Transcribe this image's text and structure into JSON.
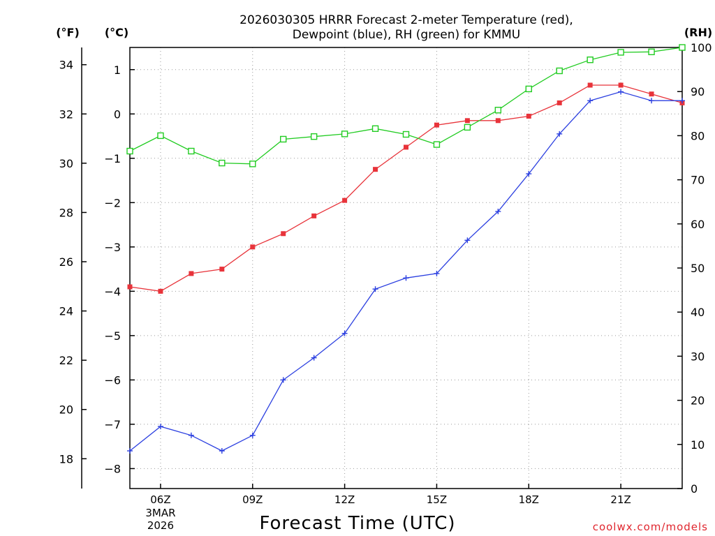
{
  "chart_data": {
    "type": "line",
    "title": [
      "2026030305 HRRR Forecast 2-meter Temperature (red),",
      "Dewpoint (blue), RH (green) for KMMU"
    ],
    "xlabel": "Forecast Time (UTC)",
    "credit": "coolwx.com/models",
    "units": {
      "fahrenheit": "(°F)",
      "celsius": "(°C)",
      "rh": "(RH)"
    },
    "x_hours": [
      5,
      6,
      7,
      8,
      9,
      10,
      11,
      12,
      13,
      14,
      15,
      16,
      17,
      18,
      19,
      20,
      21,
      22,
      23
    ],
    "xlim": [
      5,
      23
    ],
    "x_ticks": [
      {
        "hour": 6,
        "label": "06Z",
        "sub": [
          "3MAR",
          "2026"
        ]
      },
      {
        "hour": 9,
        "label": "09Z"
      },
      {
        "hour": 12,
        "label": "12Z"
      },
      {
        "hour": 15,
        "label": "15Z"
      },
      {
        "hour": 18,
        "label": "18Z"
      },
      {
        "hour": 21,
        "label": "21Z"
      }
    ],
    "ylim_c": [
      -8.45,
      1.5
    ],
    "ylim_f": [
      16.79,
      34.7
    ],
    "ylim_rh": [
      0,
      100
    ],
    "y_ticks_c": [
      1,
      0,
      -1,
      -2,
      -3,
      -4,
      -5,
      -6,
      -7,
      -8
    ],
    "y_ticks_f": [
      34,
      32,
      30,
      28,
      26,
      24,
      22,
      20,
      18
    ],
    "y_ticks_rh": [
      100,
      90,
      80,
      70,
      60,
      50,
      40,
      30,
      20,
      10,
      0
    ],
    "series": [
      {
        "name": "Temperature",
        "unit": "C",
        "color": "#e8333a",
        "marker": "filled-square",
        "values": [
          -3.9,
          -4.0,
          -3.6,
          -3.5,
          -3.0,
          -2.7,
          -2.3,
          -1.95,
          -1.25,
          -0.75,
          -0.25,
          -0.15,
          -0.15,
          -0.05,
          0.25,
          0.65,
          0.65,
          0.45,
          0.25
        ]
      },
      {
        "name": "Dewpoint",
        "unit": "C",
        "color": "#2b3fe0",
        "marker": "plus",
        "values": [
          -7.6,
          -7.05,
          -7.25,
          -7.6,
          -7.25,
          -6.0,
          -5.5,
          -4.95,
          -3.95,
          -3.7,
          -3.6,
          -2.85,
          -2.2,
          -1.35,
          -0.45,
          0.3,
          0.5,
          0.3,
          0.3
        ]
      },
      {
        "name": "RH",
        "unit": "%",
        "color": "#22cc22",
        "marker": "open-square",
        "values": [
          76.5,
          80.0,
          76.5,
          73.8,
          73.6,
          79.2,
          79.8,
          80.4,
          81.6,
          80.3,
          78.0,
          81.9,
          85.8,
          90.6,
          94.7,
          97.2,
          98.9,
          99.0,
          100.0
        ]
      }
    ]
  }
}
